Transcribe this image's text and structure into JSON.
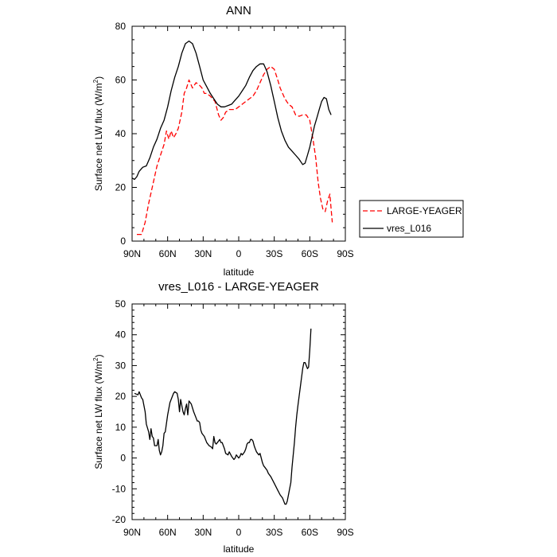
{
  "chart_data": [
    {
      "type": "line",
      "title": "ANN",
      "xlabel": "latitude",
      "ylabel": "Surface net LW flux (W/m",
      "ylabel_sup": "2",
      "ylabel_close": ")",
      "xlim": [
        90,
        -90
      ],
      "ylim": [
        0,
        80
      ],
      "xticks": [
        {
          "value": 90,
          "label": "90N"
        },
        {
          "value": 60,
          "label": "60N"
        },
        {
          "value": 30,
          "label": "30N"
        },
        {
          "value": 0,
          "label": "0"
        },
        {
          "value": -30,
          "label": "30S"
        },
        {
          "value": -60,
          "label": "60S"
        },
        {
          "value": -90,
          "label": "90S"
        }
      ],
      "yticks": [
        {
          "value": 0,
          "label": "0"
        },
        {
          "value": 20,
          "label": "20"
        },
        {
          "value": 40,
          "label": "40"
        },
        {
          "value": 60,
          "label": "60"
        },
        {
          "value": 80,
          "label": "80"
        }
      ],
      "legend_position": "right",
      "series": [
        {
          "name": "LARGE-YEAGER",
          "color": "#ff0000",
          "dash": "dashed",
          "points": [
            [
              86,
              2.5
            ],
            [
              82,
              2.5
            ],
            [
              79,
              7
            ],
            [
              76,
              14
            ],
            [
              72,
              22
            ],
            [
              69,
              28
            ],
            [
              66,
              32
            ],
            [
              63,
              36
            ],
            [
              61,
              41
            ],
            [
              59,
              38
            ],
            [
              57,
              41
            ],
            [
              55,
              38.5
            ],
            [
              53,
              40
            ],
            [
              51,
              42
            ],
            [
              48,
              48
            ],
            [
              46,
              55
            ],
            [
              44,
              57
            ],
            [
              42,
              60
            ],
            [
              39,
              57
            ],
            [
              36,
              59
            ],
            [
              33,
              58
            ],
            [
              31,
              57
            ],
            [
              29,
              55
            ],
            [
              27,
              55
            ],
            [
              24,
              54
            ],
            [
              22,
              53
            ],
            [
              20,
              52
            ],
            [
              17,
              47
            ],
            [
              15,
              45
            ],
            [
              13,
              46
            ],
            [
              11,
              48
            ],
            [
              8,
              49
            ],
            [
              6,
              49
            ],
            [
              3,
              49
            ],
            [
              0,
              50
            ],
            [
              -3,
              51
            ],
            [
              -6,
              52
            ],
            [
              -9,
              53
            ],
            [
              -12,
              54
            ],
            [
              -15,
              56
            ],
            [
              -18,
              59
            ],
            [
              -21,
              62
            ],
            [
              -24,
              64
            ],
            [
              -27,
              65
            ],
            [
              -30,
              64
            ],
            [
              -33,
              60
            ],
            [
              -35,
              57
            ],
            [
              -37,
              55
            ],
            [
              -39,
              53
            ],
            [
              -42,
              51
            ],
            [
              -45,
              50
            ],
            [
              -48,
              47
            ],
            [
              -51,
              46.5
            ],
            [
              -54,
              47
            ],
            [
              -57,
              47
            ],
            [
              -60,
              45
            ],
            [
              -63,
              37
            ],
            [
              -65,
              31
            ],
            [
              -67,
              22
            ],
            [
              -69,
              16
            ],
            [
              -71,
              12
            ],
            [
              -73,
              11
            ],
            [
              -75,
              15
            ],
            [
              -77,
              17.5
            ],
            [
              -78,
              12
            ],
            [
              -79,
              7
            ]
          ]
        },
        {
          "name": "vres_L016",
          "color": "#000000",
          "dash": "solid",
          "points": [
            [
              90,
              23.5
            ],
            [
              88,
              23
            ],
            [
              86,
              24
            ],
            [
              84,
              26
            ],
            [
              81,
              27.5
            ],
            [
              78,
              28
            ],
            [
              75,
              31
            ],
            [
              72,
              35
            ],
            [
              69,
              38
            ],
            [
              66,
              42
            ],
            [
              63,
              45
            ],
            [
              60,
              50
            ],
            [
              57,
              56
            ],
            [
              54,
              61
            ],
            [
              51,
              65
            ],
            [
              48,
              70
            ],
            [
              45,
              73.5
            ],
            [
              42,
              74.5
            ],
            [
              39,
              73.5
            ],
            [
              36,
              70
            ],
            [
              33,
              65
            ],
            [
              30,
              60
            ],
            [
              27,
              57.5
            ],
            [
              24,
              55
            ],
            [
              21,
              53
            ],
            [
              18,
              51
            ],
            [
              15,
              50
            ],
            [
              12,
              50
            ],
            [
              9,
              50.5
            ],
            [
              6,
              51
            ],
            [
              3,
              52.5
            ],
            [
              0,
              54
            ],
            [
              -3,
              56
            ],
            [
              -6,
              58
            ],
            [
              -9,
              61
            ],
            [
              -12,
              63.5
            ],
            [
              -15,
              65
            ],
            [
              -18,
              66
            ],
            [
              -21,
              66
            ],
            [
              -24,
              63
            ],
            [
              -27,
              58
            ],
            [
              -30,
              52
            ],
            [
              -33,
              46
            ],
            [
              -36,
              41
            ],
            [
              -39,
              37.5
            ],
            [
              -42,
              35
            ],
            [
              -45,
              33.5
            ],
            [
              -48,
              32
            ],
            [
              -51,
              30.5
            ],
            [
              -54,
              28.5
            ],
            [
              -56,
              29
            ],
            [
              -58,
              32
            ],
            [
              -60,
              35
            ],
            [
              -62,
              39
            ],
            [
              -64,
              43
            ],
            [
              -66,
              46
            ],
            [
              -68,
              49
            ],
            [
              -70,
              52
            ],
            [
              -72,
              53.5
            ],
            [
              -74,
              53
            ],
            [
              -76,
              49
            ],
            [
              -78,
              47
            ]
          ]
        }
      ]
    },
    {
      "type": "line",
      "title": "vres_L016 - LARGE-YEAGER",
      "xlabel": "latitude",
      "ylabel": "Surface net LW flux (W/m",
      "ylabel_sup": "2",
      "ylabel_close": ")",
      "xlim": [
        90,
        -90
      ],
      "ylim": [
        -20,
        50
      ],
      "xticks": [
        {
          "value": 90,
          "label": "90N"
        },
        {
          "value": 60,
          "label": "60N"
        },
        {
          "value": 30,
          "label": "30N"
        },
        {
          "value": 0,
          "label": "0"
        },
        {
          "value": -30,
          "label": "30S"
        },
        {
          "value": -60,
          "label": "60S"
        },
        {
          "value": -90,
          "label": "90S"
        }
      ],
      "yticks": [
        {
          "value": -20,
          "label": "-20"
        },
        {
          "value": -10,
          "label": "-10"
        },
        {
          "value": 0,
          "label": "0"
        },
        {
          "value": 10,
          "label": "10"
        },
        {
          "value": 20,
          "label": "20"
        },
        {
          "value": 30,
          "label": "30"
        },
        {
          "value": 40,
          "label": "40"
        },
        {
          "value": 50,
          "label": "50"
        }
      ],
      "series": [
        {
          "color": "#000000",
          "dash": "solid",
          "points": [
            [
              88,
              21
            ],
            [
              85,
              20.5
            ],
            [
              84,
              21.5
            ],
            [
              82,
              19.5
            ],
            [
              81,
              19
            ],
            [
              79,
              15
            ],
            [
              78,
              11
            ],
            [
              76,
              8.5
            ],
            [
              75,
              6
            ],
            [
              74,
              9.5
            ],
            [
              73,
              7
            ],
            [
              72,
              6.5
            ],
            [
              71,
              4
            ],
            [
              69,
              4
            ],
            [
              68,
              6
            ],
            [
              67,
              2.5
            ],
            [
              66,
              1
            ],
            [
              65,
              2
            ],
            [
              64,
              4
            ],
            [
              63,
              8
            ],
            [
              62,
              8.5
            ],
            [
              60,
              14
            ],
            [
              58,
              18
            ],
            [
              56,
              20
            ],
            [
              55,
              21
            ],
            [
              54,
              21.5
            ],
            [
              52,
              21
            ],
            [
              51,
              19
            ],
            [
              50,
              15
            ],
            [
              49,
              19
            ],
            [
              47,
              15
            ],
            [
              46,
              14
            ],
            [
              45,
              16
            ],
            [
              44,
              17.5
            ],
            [
              43,
              14
            ],
            [
              42,
              18.5
            ],
            [
              40,
              17.5
            ],
            [
              38,
              15
            ],
            [
              36,
              13
            ],
            [
              35,
              12
            ],
            [
              34,
              12
            ],
            [
              33,
              11.5
            ],
            [
              32,
              9
            ],
            [
              31,
              8
            ],
            [
              29,
              7
            ],
            [
              27,
              5
            ],
            [
              25,
              4
            ],
            [
              23,
              3.5
            ],
            [
              22,
              3
            ],
            [
              21,
              7
            ],
            [
              20,
              5
            ],
            [
              19,
              4.5
            ],
            [
              18,
              5
            ],
            [
              16,
              6
            ],
            [
              15,
              5
            ],
            [
              14,
              5
            ],
            [
              12,
              3
            ],
            [
              11,
              1.5
            ],
            [
              9,
              1
            ],
            [
              8,
              2
            ],
            [
              6,
              0.5
            ],
            [
              5,
              0
            ],
            [
              4,
              -0.5
            ],
            [
              3,
              0
            ],
            [
              2,
              1
            ],
            [
              1,
              0.5
            ],
            [
              0,
              0
            ],
            [
              -1,
              0.5
            ],
            [
              -2,
              1.5
            ],
            [
              -3,
              1
            ],
            [
              -4,
              1.5
            ],
            [
              -5,
              2
            ],
            [
              -6,
              3
            ],
            [
              -7,
              4.5
            ],
            [
              -8,
              5
            ],
            [
              -9,
              5
            ],
            [
              -10,
              6
            ],
            [
              -11,
              6
            ],
            [
              -12,
              5.5
            ],
            [
              -13,
              4
            ],
            [
              -14,
              3
            ],
            [
              -15,
              2
            ],
            [
              -16,
              1.5
            ],
            [
              -17,
              1
            ],
            [
              -18,
              1.5
            ],
            [
              -19,
              0
            ],
            [
              -20,
              -1.5
            ],
            [
              -21,
              -2.5
            ],
            [
              -22,
              -3
            ],
            [
              -24,
              -4
            ],
            [
              -25,
              -5
            ],
            [
              -27,
              -6
            ],
            [
              -29,
              -7.5
            ],
            [
              -31,
              -9
            ],
            [
              -33,
              -10.5
            ],
            [
              -35,
              -12
            ],
            [
              -37,
              -13
            ],
            [
              -38,
              -14
            ],
            [
              -39,
              -15
            ],
            [
              -40,
              -15
            ],
            [
              -41,
              -14
            ],
            [
              -42,
              -12
            ],
            [
              -43,
              -10
            ],
            [
              -44,
              -8
            ],
            [
              -45,
              -3
            ],
            [
              -46,
              1
            ],
            [
              -47,
              5
            ],
            [
              -48,
              10
            ],
            [
              -49,
              14
            ],
            [
              -50,
              17
            ],
            [
              -51,
              20
            ],
            [
              -52,
              23
            ],
            [
              -53,
              26
            ],
            [
              -54,
              29
            ],
            [
              -55,
              31
            ],
            [
              -56,
              31
            ],
            [
              -57,
              30
            ],
            [
              -58,
              29
            ],
            [
              -59,
              29.5
            ],
            [
              -60,
              35
            ],
            [
              -61,
              42
            ]
          ]
        }
      ]
    }
  ]
}
